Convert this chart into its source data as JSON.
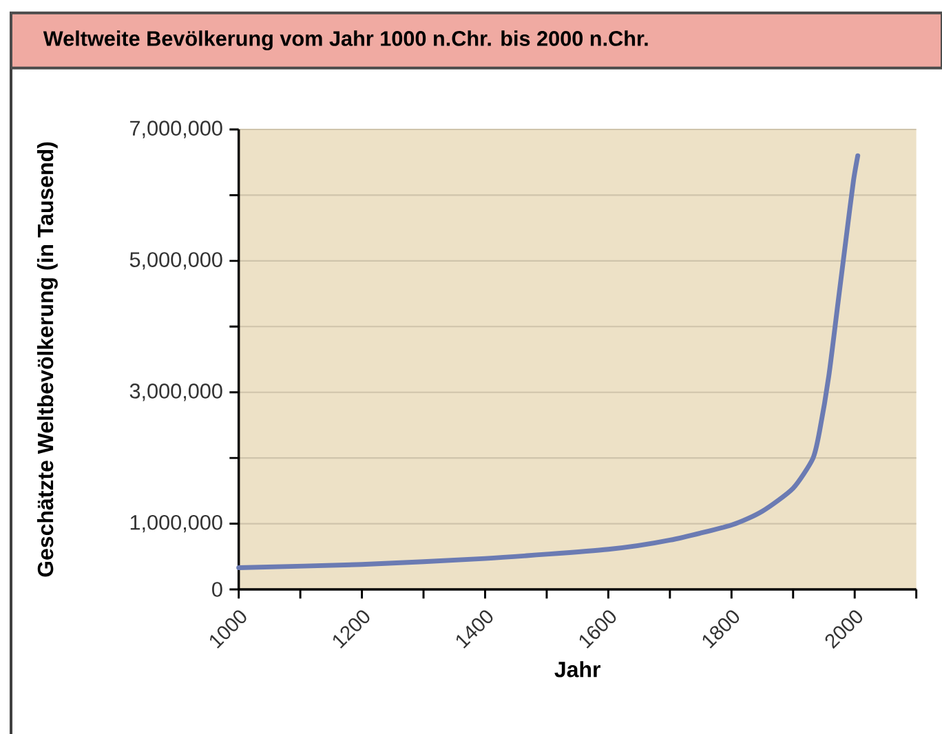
{
  "chart_data": {
    "type": "line",
    "title": "Weltweite Bevölkerung vom Jahr 1000 n.Chr. bis 2000 n.Chr.",
    "xlabel": "Jahr",
    "ylabel": "Geschätzte Weltbevölkerung (in Tausend)",
    "x": [
      1000,
      1200,
      1400,
      1600,
      1700,
      1800,
      1850,
      1900,
      1932,
      1943,
      1958,
      1973,
      1988,
      1998,
      2005
    ],
    "series": [
      {
        "color": "#6b7bb3",
        "values": [
          330000,
          380000,
          470000,
          610000,
          750000,
          980000,
          1190000,
          1540000,
          1990000,
          2410000,
          3250000,
          4370000,
          5490000,
          6220000,
          6600000
        ]
      }
    ],
    "xlim": [
      1000,
      2100
    ],
    "xticks": [
      1000,
      {
        "value": 1100,
        "label": null
      },
      1200,
      {
        "value": 1300,
        "label": null
      },
      1400,
      {
        "value": 1500,
        "label": null
      },
      1600,
      {
        "value": 1700,
        "label": null
      },
      1800,
      {
        "value": 1900,
        "label": null
      },
      2000,
      {
        "value": 2100,
        "label": null
      }
    ],
    "ylim": [
      0,
      7000000
    ],
    "yticks": [
      0,
      {
        "value": 1000000,
        "label": "1,000,000"
      },
      {
        "value": 2000000,
        "label": null
      },
      {
        "value": 3000000,
        "label": "3,000,000"
      },
      {
        "value": 4000000,
        "label": null
      },
      {
        "value": 5000000,
        "label": "5,000,000"
      },
      {
        "value": 6000000,
        "label": null
      },
      {
        "value": 7000000,
        "label": "7,000,000"
      }
    ],
    "grid": "y",
    "marker": "none",
    "line_style": "solid"
  }
}
